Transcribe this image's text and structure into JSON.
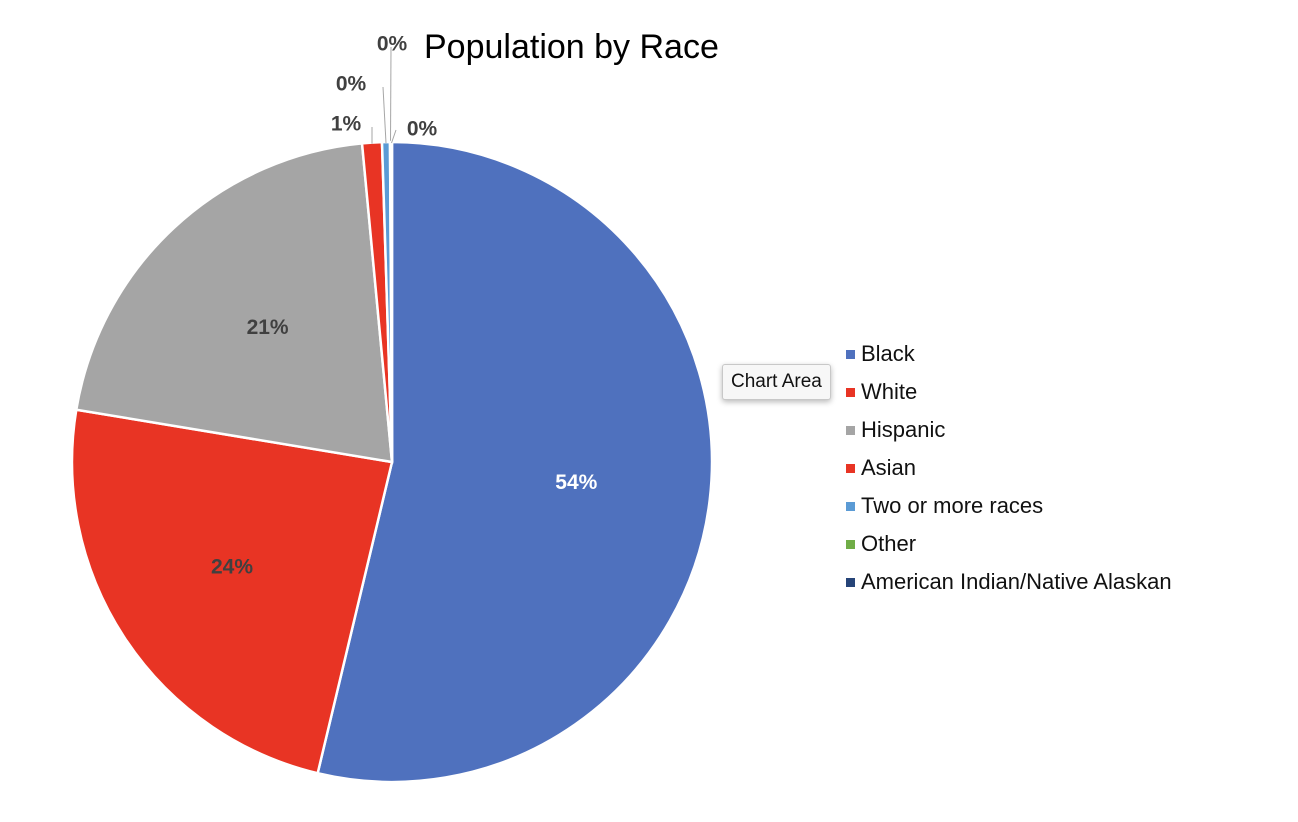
{
  "tooltip": {
    "label": "Chart Area"
  },
  "chart_data": {
    "type": "pie",
    "title": "Population by Race",
    "categories": [
      "Black",
      "White",
      "Hispanic",
      "Asian",
      "Two or more races",
      "Other",
      "American Indian/Native Alaskan"
    ],
    "values": [
      54,
      24,
      21,
      1,
      0.4,
      0.05,
      0.05
    ],
    "data_labels": [
      "54%",
      "24%",
      "21%",
      "1%",
      "0%",
      "0%",
      "0%"
    ],
    "colors": [
      "#4F71BE",
      "#E83424",
      "#A5A5A5",
      "#E83424",
      "#5B9BD5",
      "#70AD47",
      "#264478"
    ],
    "label_colors": [
      "#FFFFFF",
      "#404040",
      "#404040",
      "#404040",
      "#404040",
      "#404040",
      "#404040"
    ],
    "legend_position": "right"
  }
}
